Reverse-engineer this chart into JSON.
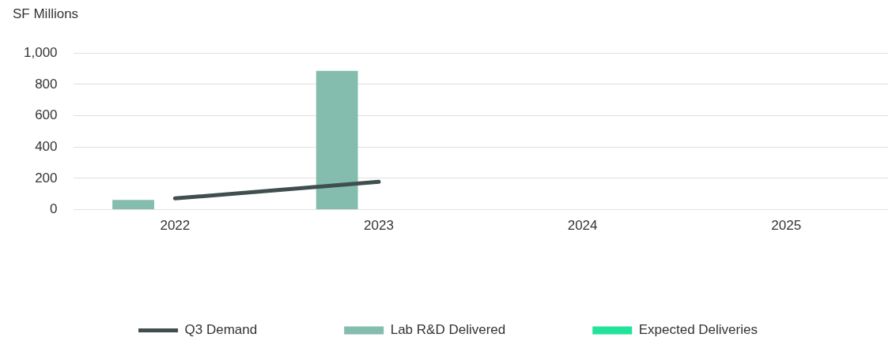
{
  "chart_data": {
    "type": "bar",
    "ylabel": "SF Millions",
    "categories": [
      "2022",
      "2023",
      "2024",
      "2025"
    ],
    "series": [
      {
        "name": "Lab R&D Delivered",
        "color": "#84bcad",
        "values": [
          62,
          886,
          null,
          null
        ]
      },
      {
        "name": "Q3 Demand",
        "type": "line",
        "color": "#3f4f4f",
        "values": [
          72,
          178,
          null,
          null
        ]
      },
      {
        "name": "Expected Deliveries",
        "color": "#22e39a",
        "values": [
          null,
          null,
          null,
          null
        ]
      }
    ],
    "ylim": [
      0,
      1000
    ],
    "yticks": [
      0,
      200,
      400,
      600,
      800,
      {
        "value": 1000,
        "label": "1,000"
      }
    ],
    "grid": "y",
    "legend": "bottom",
    "marker": "none"
  }
}
